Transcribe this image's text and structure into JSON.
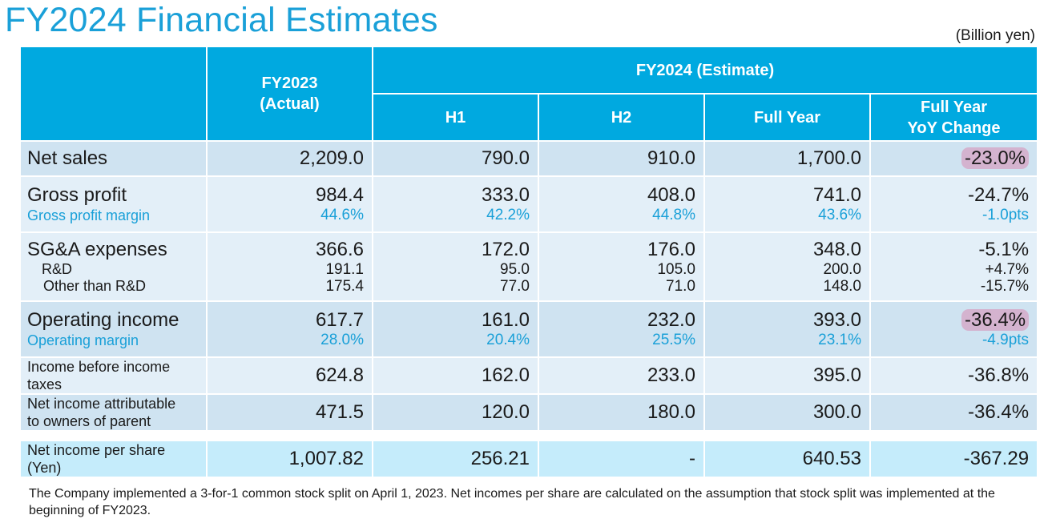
{
  "title": "FY2024 Financial Estimates",
  "unit": "(Billion yen)",
  "headers": {
    "fy2023_line1": "FY2023",
    "fy2023_line2": "(Actual)",
    "fy2024": "FY2024 (Estimate)",
    "h1": "H1",
    "h2": "H2",
    "full_year": "Full Year",
    "yoy_line1": "Full Year",
    "yoy_line2": "YoY Change"
  },
  "rows": {
    "net_sales": {
      "label": "Net sales",
      "fy2023": "2,209.0",
      "h1": "790.0",
      "h2": "910.0",
      "full": "1,700.0",
      "yoy": "-23.0%"
    },
    "gross_profit": {
      "label": "Gross profit",
      "fy2023": "984.4",
      "h1": "333.0",
      "h2": "408.0",
      "full": "741.0",
      "yoy": "-24.7%",
      "sub_label": "Gross profit margin",
      "sub_fy2023": "44.6%",
      "sub_h1": "42.2%",
      "sub_h2": "44.8%",
      "sub_full": "43.6%",
      "sub_yoy": "-1.0pts"
    },
    "sga": {
      "label": "SG&A expenses",
      "fy2023": "366.6",
      "h1": "172.0",
      "h2": "176.0",
      "full": "348.0",
      "yoy": "-5.1%",
      "rd_label": "R&D",
      "rd_fy2023": "191.1",
      "rd_h1": "95.0",
      "rd_h2": "105.0",
      "rd_full": "200.0",
      "rd_yoy": "+4.7%",
      "other_label": "Other than R&D",
      "other_fy2023": "175.4",
      "other_h1": "77.0",
      "other_h2": "71.0",
      "other_full": "148.0",
      "other_yoy": "-15.7%"
    },
    "operating_income": {
      "label": "Operating income",
      "fy2023": "617.7",
      "h1": "161.0",
      "h2": "232.0",
      "full": "393.0",
      "yoy": "-36.4%",
      "sub_label": "Operating margin",
      "sub_fy2023": "28.0%",
      "sub_h1": "20.4%",
      "sub_h2": "25.5%",
      "sub_full": "23.1%",
      "sub_yoy": "-4.9pts"
    },
    "income_before_taxes": {
      "label_line1": "Income before income",
      "label_line2": "taxes",
      "fy2023": "624.8",
      "h1": "162.0",
      "h2": "233.0",
      "full": "395.0",
      "yoy": "-36.8%"
    },
    "net_income": {
      "label_line1": "Net income attributable",
      "label_line2": "to owners of parent",
      "fy2023": "471.5",
      "h1": "120.0",
      "h2": "180.0",
      "full": "300.0",
      "yoy": "-36.4%"
    },
    "eps": {
      "label_line1": "Net income per share",
      "label_line2": "(Yen)",
      "fy2023": "1,007.82",
      "h1": "256.21",
      "h2": "-",
      "full": "640.53",
      "yoy": "-367.29"
    }
  },
  "note": "The Company implemented a 3-for-1 common stock split on April 1, 2023. Net incomes per share are calculated on the assumption that stock split was implemented at the beginning of FY2023."
}
